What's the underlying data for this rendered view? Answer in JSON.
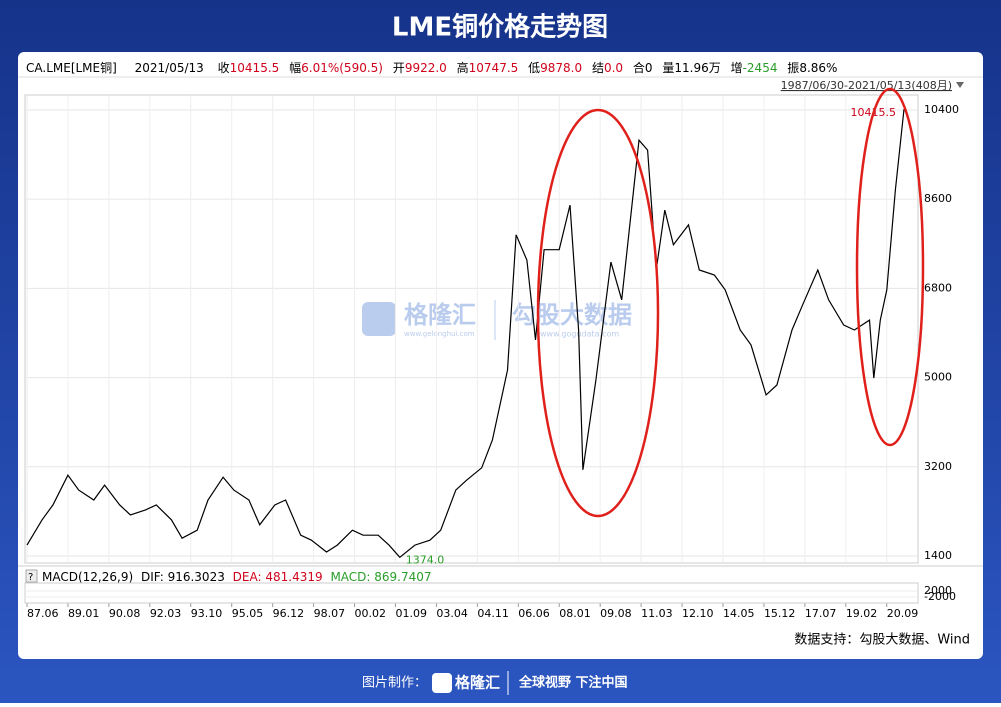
{
  "title": "LME铜价格走势图",
  "info": {
    "symbol": "CA.LME[LME铜]",
    "date": "2021/05/13",
    "items": [
      {
        "label": "收",
        "value": "10415.5"
      },
      {
        "label": "幅",
        "value": "6.01%(590.5)"
      },
      {
        "label": "开",
        "value": "9922.0"
      },
      {
        "label": "高",
        "value": "10747.5"
      },
      {
        "label": "低",
        "value": "9878.0"
      },
      {
        "label": "结",
        "value": "0.0"
      },
      {
        "label": "合",
        "value": "0"
      },
      {
        "label": "量",
        "value": "11.96万"
      },
      {
        "label": "增",
        "value": "-2454"
      },
      {
        "label": "振",
        "value": "8.86%"
      }
    ],
    "range": "1987/06/30-2021/05/13(408月)"
  },
  "chart_data": {
    "type": "line",
    "color": "#000000",
    "grid": true,
    "x": [
      "1987-06",
      "1988-01",
      "1988-06",
      "1989-01",
      "1989-06",
      "1990-01",
      "1990-06",
      "1991-01",
      "1991-06",
      "1992-01",
      "1992-06",
      "1993-01",
      "1993-06",
      "1994-01",
      "1994-06",
      "1995-01",
      "1995-06",
      "1996-01",
      "1996-06",
      "1997-01",
      "1997-06",
      "1998-01",
      "1998-06",
      "1999-01",
      "1999-06",
      "2000-01",
      "2000-06",
      "2001-01",
      "2001-06",
      "2001-11",
      "2002-06",
      "2003-01",
      "2003-06",
      "2004-01",
      "2004-06",
      "2005-01",
      "2005-06",
      "2006-01",
      "2006-05",
      "2006-10",
      "2007-02",
      "2007-06",
      "2008-01",
      "2008-06",
      "2008-10",
      "2008-12",
      "2009-06",
      "2010-01",
      "2010-06",
      "2011-02",
      "2011-06",
      "2011-10",
      "2012-02",
      "2012-06",
      "2013-01",
      "2013-06",
      "2014-01",
      "2014-06",
      "2015-01",
      "2015-06",
      "2016-01",
      "2016-06",
      "2017-01",
      "2017-06",
      "2018-01",
      "2018-06",
      "2019-01",
      "2019-06",
      "2020-01",
      "2020-03",
      "2020-06",
      "2020-09",
      "2021-01",
      "2021-05"
    ],
    "values": [
      1620,
      2130,
      2430,
      3030,
      2730,
      2530,
      2830,
      2430,
      2230,
      2330,
      2430,
      2130,
      1760,
      1920,
      2530,
      2990,
      2730,
      2530,
      2030,
      2430,
      2530,
      1820,
      1720,
      1480,
      1620,
      1920,
      1820,
      1820,
      1620,
      1374,
      1620,
      1720,
      1920,
      2730,
      2930,
      3180,
      3740,
      5150,
      7880,
      7370,
      5760,
      7580,
      7580,
      8480,
      5960,
      3140,
      4950,
      7330,
      6570,
      9790,
      9590,
      7170,
      8380,
      7680,
      8080,
      7170,
      7070,
      6770,
      5960,
      5660,
      4650,
      4850,
      5960,
      6470,
      7170,
      6570,
      6060,
      5960,
      6160,
      4990,
      6160,
      6770,
      8790,
      10415.5
    ],
    "value_labels": [
      null,
      null,
      null,
      null,
      null,
      null,
      null,
      null,
      null,
      null,
      null,
      null,
      null,
      null,
      null,
      null,
      null,
      null,
      null,
      null,
      null,
      null,
      null,
      null,
      null,
      null,
      null,
      null,
      null,
      "1374.0",
      null,
      null,
      null,
      null,
      null,
      null,
      null,
      null,
      null,
      null,
      null,
      null,
      null,
      null,
      null,
      null,
      null,
      null,
      null,
      null,
      null,
      null,
      null,
      null,
      null,
      null,
      null,
      null,
      null,
      null,
      null,
      null,
      null,
      null,
      null,
      null,
      null,
      null,
      null,
      null,
      null,
      null,
      null,
      "10415.5"
    ],
    "ylim": [
      1259,
      10641
    ],
    "yticks": [
      1400,
      3200,
      5000,
      6800,
      8600,
      10400
    ],
    "xlim": [
      "1987-06",
      "2021-05"
    ],
    "xticks": [
      {
        "value": "1987-06",
        "label": "87.06"
      },
      {
        "value": "1989-01",
        "label": "89.01"
      },
      {
        "value": "1990-08",
        "label": "90.08"
      },
      {
        "value": "1992-03",
        "label": "92.03"
      },
      {
        "value": "1993-10",
        "label": "93.10"
      },
      {
        "value": "1995-05",
        "label": "95.05"
      },
      {
        "value": "1996-12",
        "label": "96.12"
      },
      {
        "value": "1998-07",
        "label": "98.07"
      },
      {
        "value": "2000-02",
        "label": "00.02"
      },
      {
        "value": "2001-09",
        "label": "01.09"
      },
      {
        "value": "2003-04",
        "label": "03.04"
      },
      {
        "value": "2004-11",
        "label": "04.11"
      },
      {
        "value": "2006-06",
        "label": "06.06"
      },
      {
        "value": "2008-01",
        "label": "08.01"
      },
      {
        "value": "2009-08",
        "label": "09.08"
      },
      {
        "value": "2011-03",
        "label": "11.03"
      },
      {
        "value": "2012-10",
        "label": "12.10"
      },
      {
        "value": "2014-05",
        "label": "14.05"
      },
      {
        "value": "2015-12",
        "label": "15.12"
      },
      {
        "value": "2017-07",
        "label": "17.07"
      },
      {
        "value": "2019-02",
        "label": "19.02"
      },
      {
        "value": "2020-09",
        "label": "20.09"
      }
    ]
  },
  "macd": {
    "label": "MACD(12,26,9)",
    "dif": "DIF: 916.3023",
    "dea": "DEA: 481.4319",
    "macd": "MACD: 869.7407",
    "ylim": [
      -6000,
      7333
    ],
    "yticks": [
      2000,
      -2000
    ]
  },
  "watermark": {
    "brand1": "格隆汇",
    "site1": "www.gelonghui.com",
    "brand2": "勾股大数据",
    "site2": "www.gogudata.com"
  },
  "source": "数据支持：勾股大数据、Wind",
  "footer": {
    "made_by": "图片制作：",
    "brand": "格隆汇",
    "slogan": "全球视野 下注中国"
  }
}
